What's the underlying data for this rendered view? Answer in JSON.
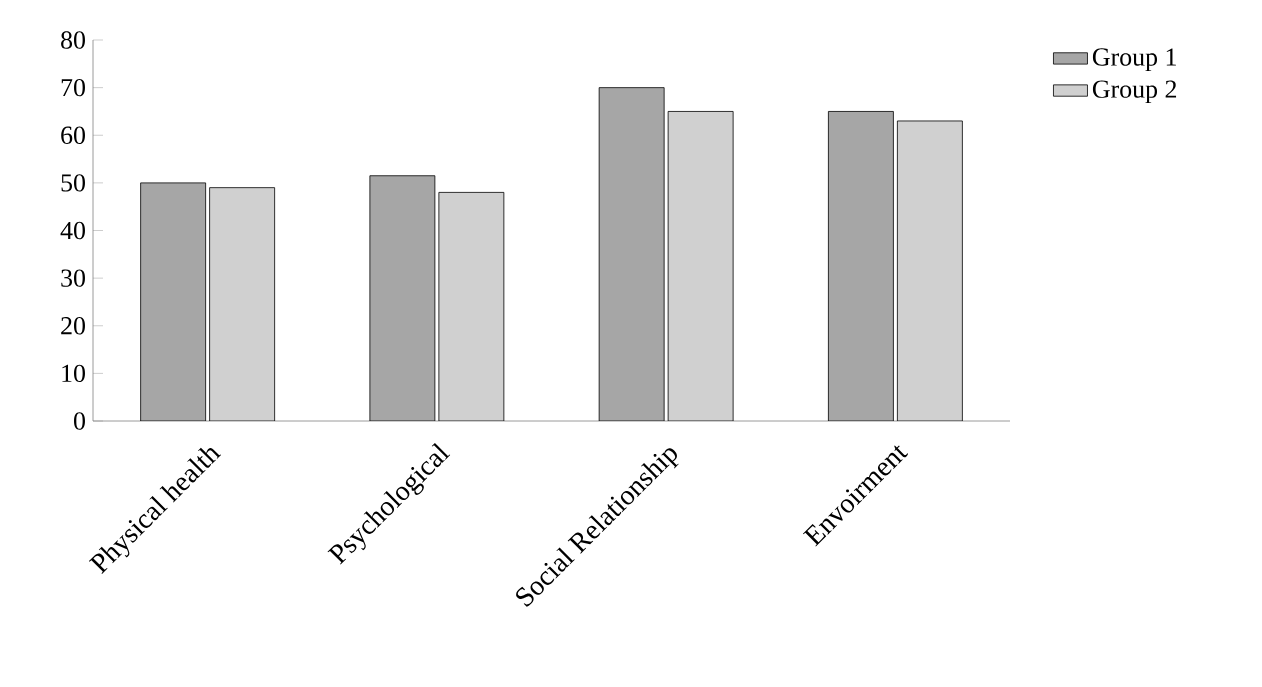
{
  "chart_data": {
    "type": "bar",
    "categories": [
      "Physical health",
      "Psychological",
      "Social Relationship",
      "Envoirment"
    ],
    "series": [
      {
        "name": "Group 1",
        "color": "#a6a6a6",
        "values": [
          50,
          51.5,
          70,
          65
        ]
      },
      {
        "name": "Group 2",
        "color": "#d0d0d0",
        "values": [
          49,
          48,
          65,
          63
        ]
      }
    ],
    "ylim": [
      0,
      80
    ],
    "yticks": [
      0,
      10,
      20,
      30,
      40,
      50,
      60,
      70,
      80
    ],
    "grid": false,
    "legend": "top right"
  }
}
